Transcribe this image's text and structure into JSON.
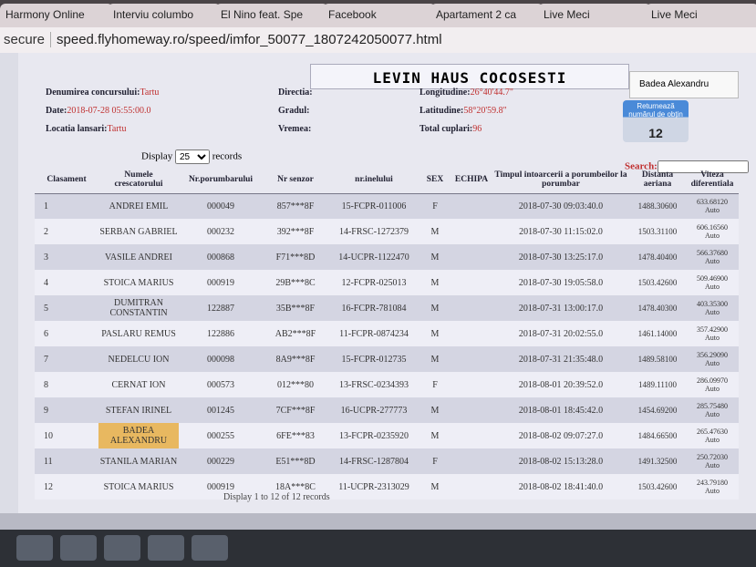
{
  "browser": {
    "tabs": [
      "Harmony Online",
      "Interviu columbo",
      "El Nino feat. Spe",
      "Facebook",
      "Apartament 2 ca",
      "Live Meci",
      "Live Meci"
    ],
    "secure": "secure",
    "url": "speed.flyhomeway.ro/speed/imfor_50077_1807242050077.html"
  },
  "header": {
    "title": "LEVIN HAUS COCOSESTI",
    "user": "Badea Alexandru",
    "left": [
      [
        "Denumirea concursului:",
        "Tartu"
      ],
      [
        "Date:",
        "2018-07-28 05:55:00.0"
      ],
      [
        "Locatia lansari:",
        "Tartu"
      ]
    ],
    "middle": [
      "Directia:",
      "Gradul:",
      "Vremea:"
    ],
    "right": [
      [
        "Longitudine:",
        "26°40'44.7\""
      ],
      [
        "Latitudine:",
        "58°20'59.8\""
      ],
      [
        "Total cuplari:",
        "96"
      ]
    ],
    "badge": {
      "text": "Returnează numărul de obțin",
      "count": "12"
    }
  },
  "controls": {
    "display": "Display",
    "length": "25",
    "records": "records",
    "search": "Search:"
  },
  "table": {
    "columns": [
      "Clasament",
      "Numele crescatorului",
      "Nr.porumbarului",
      "Nr senzor",
      "nr.inelului",
      "SEX",
      "ECHIPA",
      "Timpul intoarcerii a porumbeilor la porumbar",
      "Distanta aeriana",
      "Viteza diferentiala"
    ],
    "rows": [
      [
        "1",
        "ANDREI EMIL",
        "000049",
        "857***8F",
        "15-FCPR-011006",
        "F",
        "2018-07-30 09:03:40.0",
        "1488.30600",
        "633.68120",
        "Auto"
      ],
      [
        "2",
        "SERBAN GABRIEL",
        "000232",
        "392***8F",
        "14-FRSC-1272379",
        "M",
        "2018-07-30 11:15:02.0",
        "1503.31100",
        "606.16560",
        "Auto"
      ],
      [
        "3",
        "VASILE ANDREI",
        "000868",
        "F71***8D",
        "14-UCPR-1122470",
        "M",
        "2018-07-30 13:25:17.0",
        "1478.40400",
        "566.37680",
        "Auto"
      ],
      [
        "4",
        "STOICA MARIUS",
        "000919",
        "29B***8C",
        "12-FCPR-025013",
        "M",
        "2018-07-30 19:05:58.0",
        "1503.42600",
        "509.46900",
        "Auto"
      ],
      [
        "5",
        "DUMITRAN CONSTANTIN",
        "122887",
        "35B***8F",
        "16-FCPR-781084",
        "M",
        "2018-07-31 13:00:17.0",
        "1478.40300",
        "403.35300",
        "Auto"
      ],
      [
        "6",
        "PASLARU REMUS",
        "122886",
        "AB2***8F",
        "11-FCPR-0874234",
        "M",
        "2018-07-31 20:02:55.0",
        "1461.14000",
        "357.42900",
        "Auto"
      ],
      [
        "7",
        "NEDELCU ION",
        "000098",
        "8A9***8F",
        "15-FCPR-012735",
        "M",
        "2018-07-31 21:35:48.0",
        "1489.58100",
        "356.29090",
        "Auto"
      ],
      [
        "8",
        "CERNAT ION",
        "000573",
        "012***80",
        "13-FRSC-0234393",
        "F",
        "2018-08-01 20:39:52.0",
        "1489.11100",
        "286.09970",
        "Auto"
      ],
      [
        "9",
        "STEFAN IRINEL",
        "001245",
        "7CF***8F",
        "16-UCPR-277773",
        "M",
        "2018-08-01 18:45:42.0",
        "1454.69200",
        "285.75480",
        "Auto"
      ],
      [
        "10",
        "BADEA ALEXANDRU",
        "000255",
        "6FE***83",
        "13-FCPR-0235920",
        "M",
        "2018-08-02 09:07:27.0",
        "1484.66500",
        "265.47630",
        "Auto"
      ],
      [
        "11",
        "STANILA MARIAN",
        "000229",
        "E51***8D",
        "14-FRSC-1287804",
        "F",
        "2018-08-02 15:13:28.0",
        "1491.32500",
        "250.72030",
        "Auto"
      ],
      [
        "12",
        "STOICA MARIUS",
        "000919",
        "18A***8C",
        "11-UCPR-2313029",
        "M",
        "2018-08-02 18:41:40.0",
        "1503.42600",
        "243.79180",
        "Auto"
      ]
    ],
    "footer": "Display 1 to 12 of 12 records"
  }
}
